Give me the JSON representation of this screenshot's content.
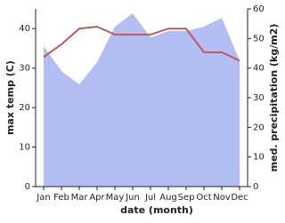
{
  "chart_data": {
    "type": "line",
    "categories": [
      "Jan",
      "Feb",
      "Mar",
      "Apr",
      "May",
      "Jun",
      "Jul",
      "Aug",
      "Sep",
      "Oct",
      "Nov",
      "Dec"
    ],
    "x_label": "date (month)",
    "y_label": "max temp (C)",
    "y2_label": "med. precipitation (kg/m2)",
    "ylim": [
      0,
      45
    ],
    "yticks": [
      0,
      10,
      20,
      30,
      40
    ],
    "y2lim": [
      0,
      60
    ],
    "y2ticks": [
      0,
      10,
      20,
      30,
      40,
      50,
      60
    ],
    "series": [
      {
        "name": "med. precipitation",
        "type": "area",
        "axis": "y2",
        "color": "#b3bff2",
        "values": [
          47.4,
          39,
          34.5,
          42,
          54,
          58.5,
          50.4,
          52.5,
          52.5,
          54,
          57,
          42.6
        ]
      },
      {
        "name": "max temp",
        "type": "line",
        "axis": "y",
        "color": "#b85a60",
        "values": [
          32.8,
          36,
          40,
          40.5,
          38.5,
          38.5,
          38.5,
          40,
          40,
          34,
          34,
          31.9
        ]
      }
    ]
  }
}
